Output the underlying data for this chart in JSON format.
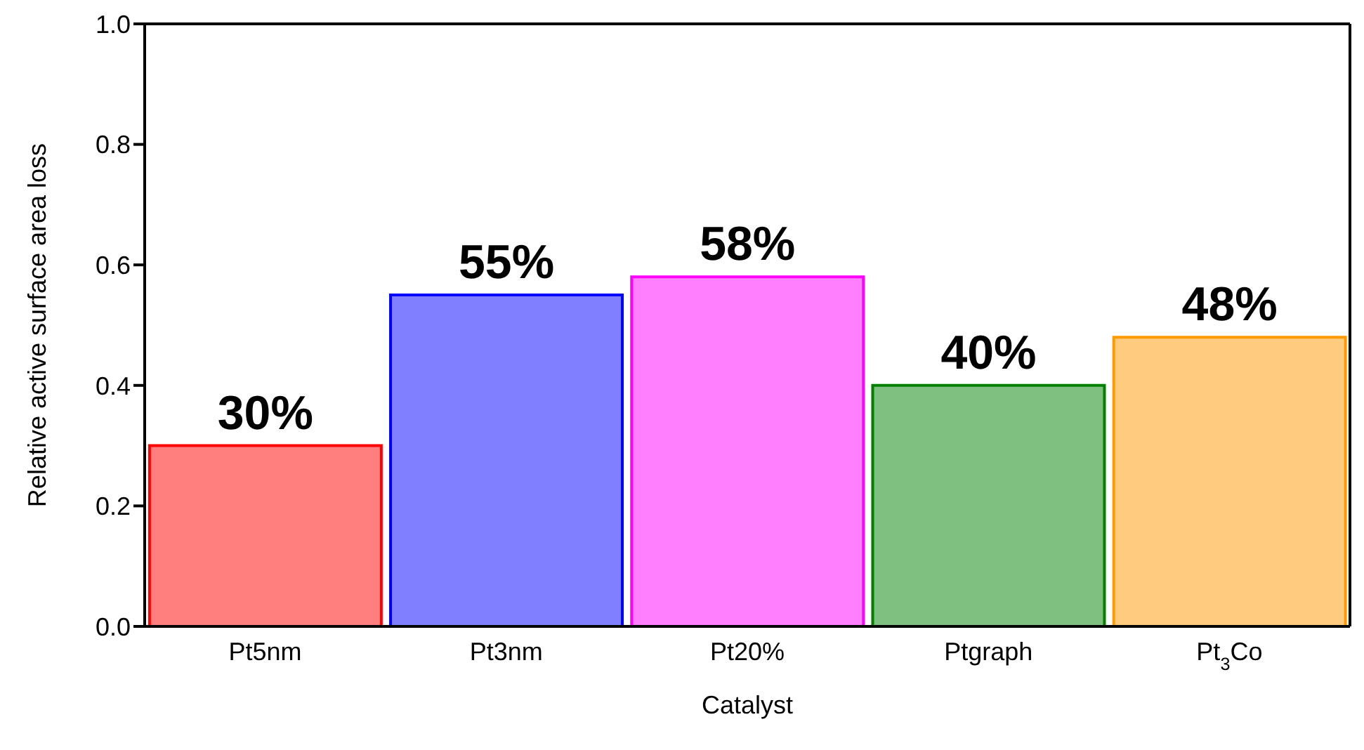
{
  "chart_data": {
    "type": "bar",
    "xlabel": "Catalyst",
    "ylabel": "Relative active surface area loss",
    "categories": [
      "Pt5nm",
      "Pt3nm",
      "Pt20%",
      "Ptgraph",
      "Pt$_{3}$Co"
    ],
    "values": [
      0.3,
      0.55,
      0.58,
      0.4,
      0.48
    ],
    "colors": [
      "#ff0000",
      "#0000ff",
      "#ff00ff",
      "#008000",
      "#ff9900"
    ],
    "value_labels": [
      "30%",
      "55%",
      "58%",
      "40%",
      "48%"
    ],
    "ylim": [
      0,
      1
    ],
    "yticks": [
      {
        "value": 0,
        "label": "0.0"
      },
      {
        "value": 0.2,
        "label": "0.2"
      },
      {
        "value": 0.4,
        "label": "0.4"
      },
      {
        "value": 0.6,
        "label": "0.6"
      },
      {
        "value": 0.8,
        "label": "0.8"
      },
      {
        "value": 1,
        "label": "1.0"
      }
    ],
    "grid": false,
    "legend": false
  }
}
